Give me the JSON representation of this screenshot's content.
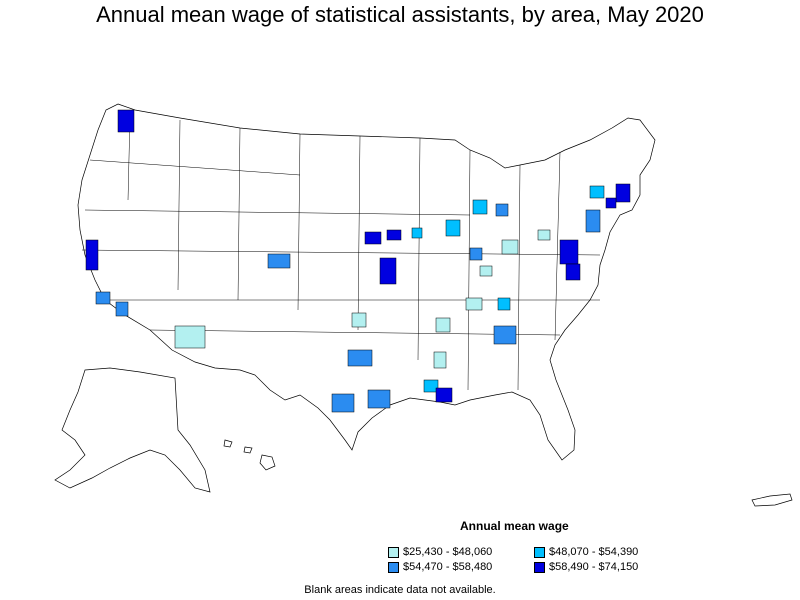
{
  "title": "Annual mean wage of statistical assistants, by area, May 2020",
  "legend": {
    "title": "Annual mean wage",
    "items": [
      {
        "label": "$25,430 - $48,060",
        "color": "#b3f0f0"
      },
      {
        "label": "$48,070 - $54,390",
        "color": "#00bfff"
      },
      {
        "label": "$54,470 - $58,480",
        "color": "#2b8cf0"
      },
      {
        "label": "$58,490 - $74,150",
        "color": "#0000e0"
      }
    ]
  },
  "note": "Blank areas indicate data not available.",
  "colors": {
    "border": "#000000",
    "blank": "#ffffff"
  }
}
